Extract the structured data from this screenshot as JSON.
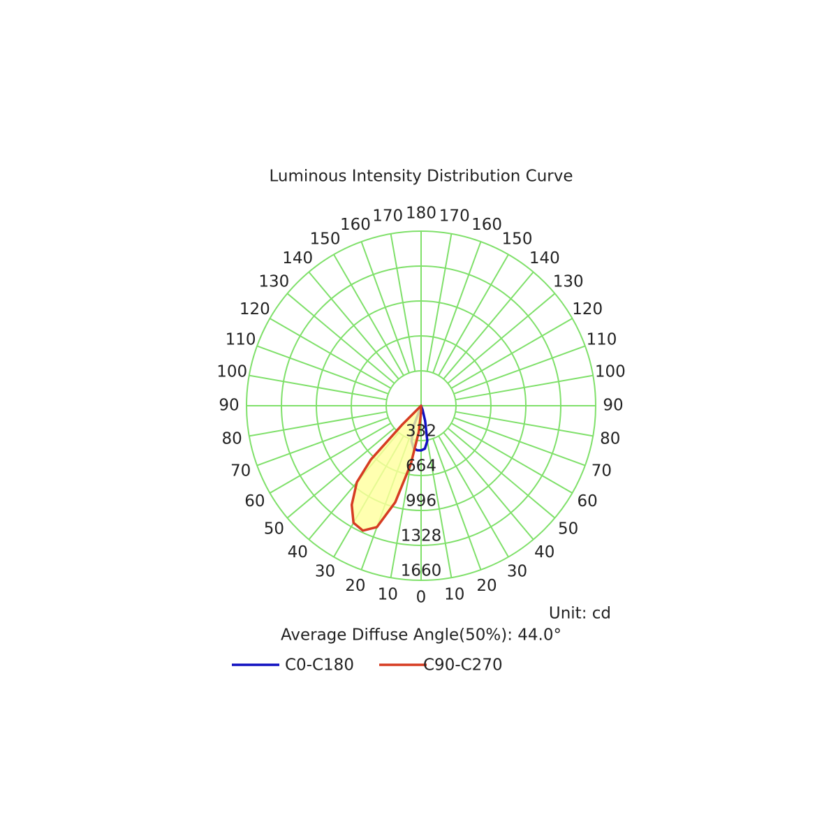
{
  "chart_data": {
    "type": "polar",
    "title": "Luminous Intensity Distribution Curve",
    "unit_label": "Unit: cd",
    "note": "Average Diffuse Angle(50%): 44.0°",
    "rlim": [
      0,
      1660
    ],
    "rticks": [
      332,
      664,
      996,
      1328,
      1660
    ],
    "angle_ticks": [
      0,
      10,
      20,
      30,
      40,
      50,
      60,
      70,
      80,
      90,
      100,
      110,
      120,
      130,
      140,
      150,
      160,
      170,
      180
    ],
    "grid": true,
    "series": [
      {
        "name": "C0-C180",
        "color": "#1010c0",
        "fill": null,
        "angles": [
          -25,
          -20,
          -15,
          -10,
          -5,
          0,
          5,
          10,
          15,
          20,
          25
        ],
        "values": [
          0,
          200,
          350,
          410,
          425,
          425,
          410,
          340,
          150,
          40,
          0
        ]
      },
      {
        "name": "C90-C270",
        "color": "#d63c22",
        "fill": "#ffff9c",
        "angles": [
          -50,
          -45,
          -43,
          -40,
          -35,
          -30,
          -25,
          -20,
          -15,
          -10,
          -5,
          0,
          5
        ],
        "values": [
          0,
          250,
          700,
          950,
          1150,
          1285,
          1310,
          1228,
          950,
          560,
          250,
          60,
          0
        ]
      }
    ]
  }
}
